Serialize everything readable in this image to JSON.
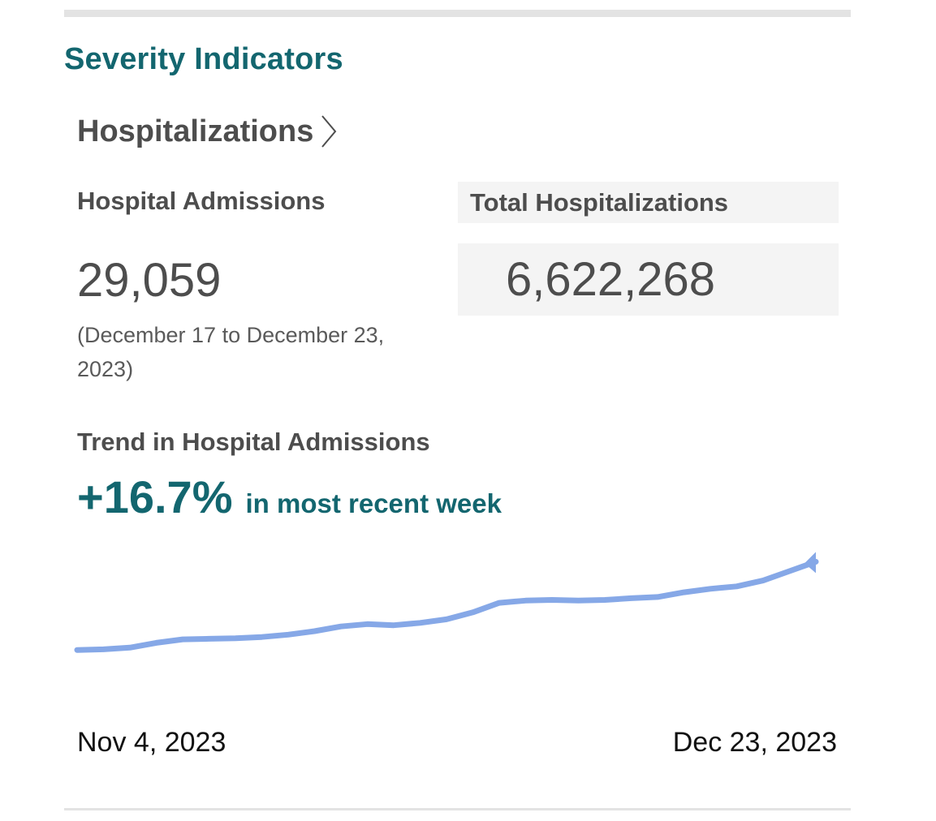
{
  "section": {
    "title": "Severity Indicators"
  },
  "hospitalizations": {
    "heading": "Hospitalizations",
    "chevron_icon": "chevron-right-icon"
  },
  "admissions": {
    "label": "Hospital Admissions",
    "value": "29,059",
    "period_note": "(December 17 to December 23, 2023)"
  },
  "total": {
    "label": "Total Hospitalizations",
    "value": "6,622,268"
  },
  "trend": {
    "label": "Trend in Hospital Admissions",
    "percent": "+16.7%",
    "suffix": "in most recent week"
  },
  "colors": {
    "accent": "#13666f",
    "text": "#4d4d4d",
    "line": "#86a8e7",
    "box_bg": "#f4f4f4"
  },
  "chart_data": {
    "type": "line",
    "x_start": "Nov 4, 2023",
    "x_end": "Dec 23, 2023",
    "ylim": [
      0,
      100
    ],
    "series": [
      {
        "values": [
          13,
          13.5,
          15,
          19,
          22,
          22.5,
          23,
          24,
          26,
          29,
          33,
          35,
          34,
          36,
          39,
          45,
          53,
          55,
          55.5,
          55,
          55.5,
          57,
          58,
          62,
          65,
          67,
          72,
          80,
          88
        ]
      }
    ]
  }
}
